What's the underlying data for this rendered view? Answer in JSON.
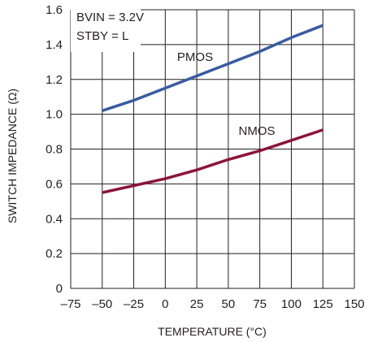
{
  "chart_data": {
    "type": "line",
    "xlabel": "TEMPERATURE (°C)",
    "ylabel": "SWITCH IMPEDANCE (Ω)",
    "xlim": [
      -75,
      150
    ],
    "ylim": [
      0,
      1.6
    ],
    "xticks": [
      -75,
      -50,
      -25,
      0,
      25,
      50,
      75,
      100,
      125,
      150
    ],
    "xtick_labels": [
      "–75",
      "–50",
      "–25",
      "0",
      "25",
      "50",
      "75",
      "100",
      "125",
      "150"
    ],
    "yticks": [
      0,
      0.2,
      0.4,
      0.6,
      0.8,
      1.0,
      1.2,
      1.4,
      1.6
    ],
    "ytick_labels": [
      "0",
      "0.2",
      "0.4",
      "0.6",
      "0.8",
      "1.0",
      "1.2",
      "1.4",
      "1.6"
    ],
    "grid": true,
    "conditions": [
      "BVIN = 3.2V",
      "STBY = L"
    ],
    "series": [
      {
        "name": "PMOS",
        "color": "#3a5ba0",
        "x": [
          -50,
          -25,
          0,
          25,
          50,
          75,
          100,
          125
        ],
        "y": [
          1.02,
          1.08,
          1.15,
          1.22,
          1.29,
          1.36,
          1.44,
          1.51
        ]
      },
      {
        "name": "NMOS",
        "color": "#8b1538",
        "x": [
          -50,
          -25,
          0,
          25,
          50,
          75,
          100,
          125
        ],
        "y": [
          0.55,
          0.59,
          0.63,
          0.68,
          0.74,
          0.79,
          0.85,
          0.91
        ]
      }
    ]
  }
}
